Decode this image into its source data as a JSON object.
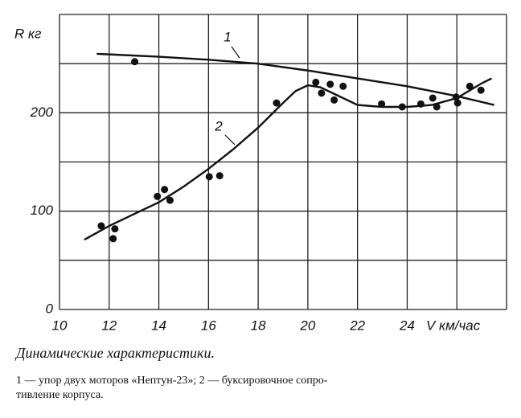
{
  "chart_data": {
    "type": "line",
    "xlabel": "V км/час",
    "ylabel": "R кг",
    "xlim": [
      10,
      28
    ],
    "ylim": [
      0,
      300
    ],
    "xticks": [
      10,
      12,
      14,
      16,
      18,
      20,
      22,
      24
    ],
    "yticks": [
      0,
      100,
      200
    ],
    "xgrid": [
      10,
      12,
      14,
      16,
      18,
      20,
      22,
      24,
      26,
      28
    ],
    "ygrid": [
      0,
      50,
      100,
      150,
      200,
      250,
      300
    ],
    "grid": true,
    "color": "#111111",
    "series": [
      {
        "name": "1",
        "x": [
          11.5,
          14,
          16,
          18,
          20,
          22,
          24,
          26,
          27.5
        ],
        "values": [
          260,
          257,
          254,
          250,
          243,
          235,
          227,
          217,
          208
        ]
      },
      {
        "name": "2",
        "x": [
          11,
          12,
          13,
          14,
          15,
          16,
          17,
          18,
          19,
          19.5,
          20,
          20.5,
          21,
          22,
          23,
          24,
          25,
          26,
          27,
          27.4
        ],
        "values": [
          71,
          85,
          97,
          109,
          125,
          143,
          163,
          185,
          210,
          222,
          228,
          226,
          220,
          208,
          206,
          206,
          208,
          215,
          230,
          235
        ]
      }
    ],
    "points": {
      "x": [
        11.68,
        12.16,
        12.23,
        13.03,
        13.94,
        14.23,
        14.45,
        16.03,
        16.45,
        18.74,
        20.32,
        20.55,
        20.9,
        21.06,
        21.42,
        22.97,
        23.8,
        24.55,
        25.03,
        25.19,
        25.97,
        26.03,
        26.52,
        26.97
      ],
      "values": [
        85,
        72,
        82,
        252,
        115,
        122,
        111,
        135,
        136,
        210,
        231,
        220,
        229,
        213,
        227,
        209,
        206,
        209,
        215,
        206,
        216,
        210,
        227,
        223
      ]
    },
    "caption": "Динамические характеристики.",
    "legend_text": [
      "1 — упор двух моторов «Нептун-23»; 2 — буксировочное сопро-",
      "тивление корпуса."
    ]
  }
}
